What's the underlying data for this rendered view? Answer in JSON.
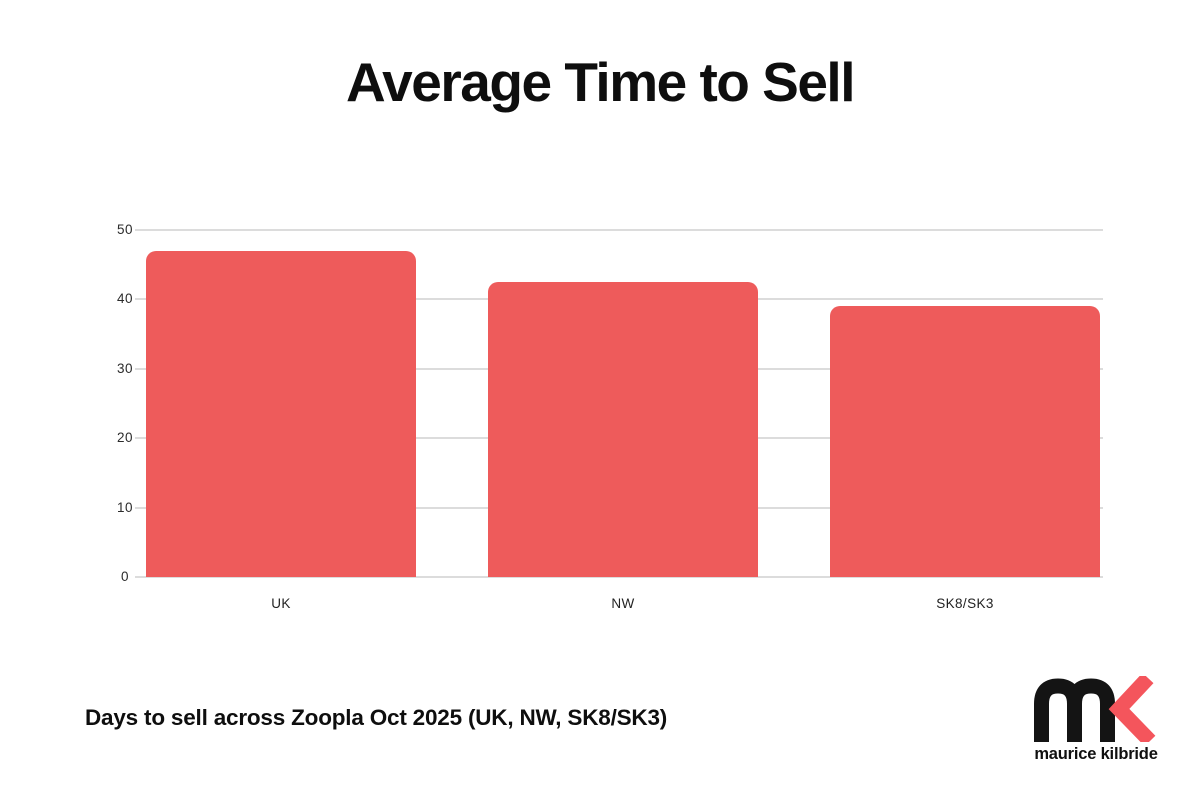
{
  "page": {
    "background": "#FFFFFF"
  },
  "title": "Average Time to Sell",
  "caption": "Days to sell across Zoopla Oct 2025 (UK, NW, SK8/SK3)",
  "logo": {
    "name": "maurice kilbride",
    "mark": "mk-monogram",
    "black": "#141414",
    "red": "#F4555C"
  },
  "chart_data": {
    "type": "bar",
    "title": "Average Time to Sell",
    "categories": [
      "UK",
      "NW",
      "SK8/SK3"
    ],
    "values": [
      47,
      42.5,
      39
    ],
    "xlabel": "",
    "ylabel": "",
    "ylim": [
      0,
      50
    ],
    "yticks": [
      0,
      10,
      20,
      30,
      40,
      50
    ],
    "grid": true,
    "legend": false,
    "bar_color": "#EE5B5B",
    "gridline_color": "#DCDCDC",
    "tick_label_color": "#2B2B2B"
  }
}
